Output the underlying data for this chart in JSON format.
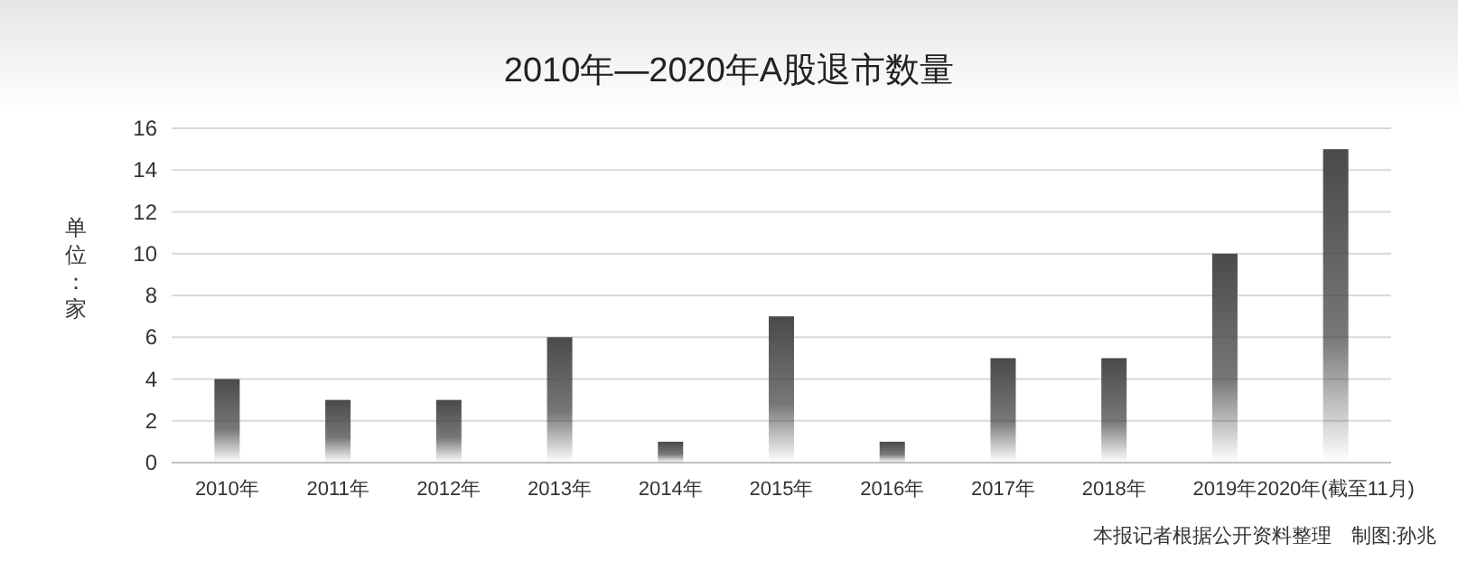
{
  "chart_data": {
    "type": "bar",
    "title": "2010年—2020年A股退市数量",
    "ylabel": "单位：家",
    "categories": [
      "2010年",
      "2011年",
      "2012年",
      "2013年",
      "2014年",
      "2015年",
      "2016年",
      "2017年",
      "2018年",
      "2019年",
      "2020年(截至11月)"
    ],
    "values": [
      4,
      3,
      3,
      6,
      1,
      7,
      1,
      5,
      5,
      10,
      15
    ],
    "color": "#4a4a4a",
    "ylim": [
      0,
      16
    ],
    "yticks": [
      0,
      2,
      4,
      6,
      8,
      10,
      12,
      14,
      16
    ],
    "grid": "y",
    "annotations": [
      "本报记者根据公开资料整理　制图:孙兆"
    ]
  }
}
